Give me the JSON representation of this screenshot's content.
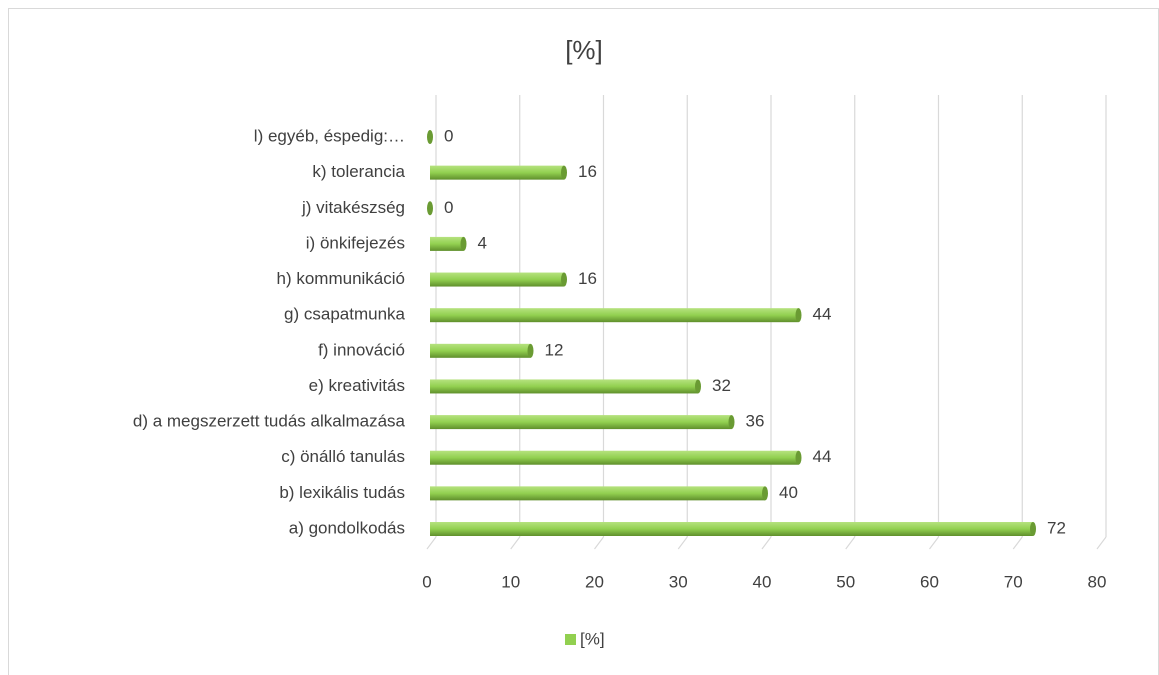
{
  "chart_data": {
    "type": "bar",
    "orientation": "horizontal",
    "title": "[%]",
    "categories": [
      "a) gondolkodás",
      "b) lexikális tudás",
      "c) önálló tanulás",
      "d) a megszerzett tudás alkalmazása",
      "e) kreativitás",
      "f) innováció",
      "g) csapatmunka",
      "h) kommunikáció",
      "i) önkifejezés",
      "j) vitakészség",
      "k) tolerancia",
      "l) egyéb, éspedig:…"
    ],
    "series": [
      {
        "name": "[%]",
        "color": "#92d050",
        "values": [
          72,
          40,
          44,
          36,
          32,
          12,
          44,
          16,
          4,
          0,
          16,
          0
        ]
      }
    ],
    "xlim": [
      0,
      80
    ],
    "xticks": [
      0,
      10,
      20,
      30,
      40,
      50,
      60,
      70,
      80
    ],
    "grid": true,
    "legend": "bottom"
  }
}
